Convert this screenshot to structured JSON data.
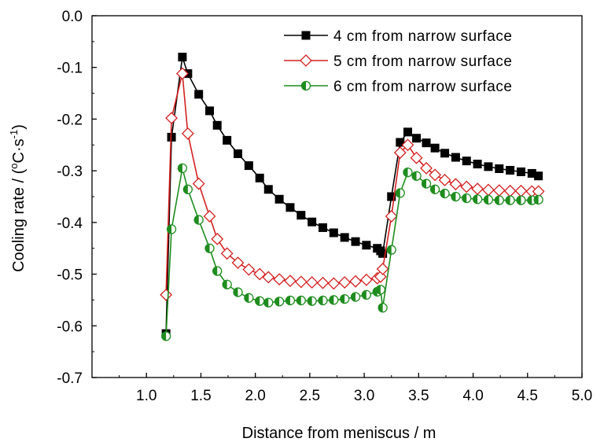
{
  "chart_data": {
    "type": "line",
    "title": "",
    "xlabel": "Distance from meniscus / m",
    "ylabel_parts": [
      "Cooling rate / (",
      "o",
      "C·s",
      "-1",
      ")"
    ],
    "xlim": [
      0.5,
      5.0
    ],
    "ylim": [
      -0.7,
      0.0
    ],
    "xticks": [
      "1.0",
      "1.5",
      "2.0",
      "2.5",
      "3.0",
      "3.5",
      "4.0",
      "4.5",
      "5.0"
    ],
    "xtick_values": [
      1.0,
      1.5,
      2.0,
      2.5,
      3.0,
      3.5,
      4.0,
      4.5,
      5.0
    ],
    "yticks": [
      "0.0",
      "-0.1",
      "-0.2",
      "-0.3",
      "-0.4",
      "-0.5",
      "-0.6",
      "-0.7"
    ],
    "ytick_values": [
      0.0,
      -0.1,
      -0.2,
      -0.3,
      -0.4,
      -0.5,
      -0.6,
      -0.7
    ],
    "grid": false,
    "legend_position": "top-right",
    "series": [
      {
        "name": "4 cm from narrow surface",
        "color": "#000000",
        "marker": "filled-square",
        "x": [
          1.18,
          1.23,
          1.33,
          1.38,
          1.48,
          1.58,
          1.65,
          1.74,
          1.84,
          1.94,
          2.04,
          2.12,
          2.22,
          2.32,
          2.42,
          2.52,
          2.62,
          2.72,
          2.82,
          2.92,
          3.02,
          3.12,
          3.15,
          3.17,
          3.25,
          3.33,
          3.4,
          3.48,
          3.57,
          3.65,
          3.74,
          3.84,
          3.94,
          4.04,
          4.14,
          4.24,
          4.34,
          4.44,
          4.54,
          4.6
        ],
        "y": [
          -0.615,
          -0.235,
          -0.08,
          -0.112,
          -0.152,
          -0.184,
          -0.212,
          -0.241,
          -0.267,
          -0.29,
          -0.314,
          -0.336,
          -0.355,
          -0.371,
          -0.386,
          -0.399,
          -0.41,
          -0.42,
          -0.429,
          -0.437,
          -0.444,
          -0.45,
          -0.455,
          -0.46,
          -0.35,
          -0.245,
          -0.225,
          -0.237,
          -0.246,
          -0.256,
          -0.266,
          -0.274,
          -0.281,
          -0.287,
          -0.292,
          -0.296,
          -0.299,
          -0.302,
          -0.305,
          -0.31
        ]
      },
      {
        "name": "5 cm from narrow surface",
        "color": "#d42020",
        "marker": "open-diamond",
        "x": [
          1.18,
          1.23,
          1.33,
          1.38,
          1.48,
          1.58,
          1.65,
          1.74,
          1.84,
          1.94,
          2.04,
          2.12,
          2.22,
          2.32,
          2.42,
          2.52,
          2.62,
          2.72,
          2.82,
          2.92,
          3.02,
          3.12,
          3.15,
          3.17,
          3.25,
          3.33,
          3.4,
          3.48,
          3.57,
          3.65,
          3.74,
          3.84,
          3.94,
          4.04,
          4.14,
          4.24,
          4.34,
          4.44,
          4.54,
          4.6
        ],
        "y": [
          -0.54,
          -0.198,
          -0.112,
          -0.228,
          -0.325,
          -0.388,
          -0.432,
          -0.46,
          -0.478,
          -0.491,
          -0.5,
          -0.506,
          -0.51,
          -0.513,
          -0.515,
          -0.516,
          -0.517,
          -0.518,
          -0.516,
          -0.514,
          -0.511,
          -0.508,
          -0.505,
          -0.49,
          -0.388,
          -0.265,
          -0.25,
          -0.275,
          -0.295,
          -0.308,
          -0.318,
          -0.326,
          -0.331,
          -0.335,
          -0.337,
          -0.338,
          -0.339,
          -0.339,
          -0.34,
          -0.34
        ]
      },
      {
        "name": "6 cm from narrow surface",
        "color": "#1e8c1e",
        "marker": "half-filled-circle",
        "x": [
          1.18,
          1.23,
          1.33,
          1.38,
          1.48,
          1.58,
          1.65,
          1.74,
          1.84,
          1.94,
          2.04,
          2.12,
          2.22,
          2.32,
          2.42,
          2.52,
          2.62,
          2.72,
          2.82,
          2.92,
          3.02,
          3.12,
          3.15,
          3.17,
          3.25,
          3.33,
          3.4,
          3.48,
          3.57,
          3.65,
          3.74,
          3.84,
          3.94,
          4.04,
          4.14,
          4.24,
          4.34,
          4.44,
          4.54,
          4.6
        ],
        "y": [
          -0.62,
          -0.413,
          -0.295,
          -0.336,
          -0.395,
          -0.45,
          -0.494,
          -0.52,
          -0.535,
          -0.546,
          -0.552,
          -0.555,
          -0.553,
          -0.551,
          -0.551,
          -0.552,
          -0.551,
          -0.55,
          -0.548,
          -0.544,
          -0.54,
          -0.534,
          -0.53,
          -0.565,
          -0.453,
          -0.343,
          -0.303,
          -0.31,
          -0.325,
          -0.336,
          -0.344,
          -0.35,
          -0.353,
          -0.355,
          -0.356,
          -0.357,
          -0.357,
          -0.357,
          -0.357,
          -0.356
        ]
      }
    ]
  }
}
